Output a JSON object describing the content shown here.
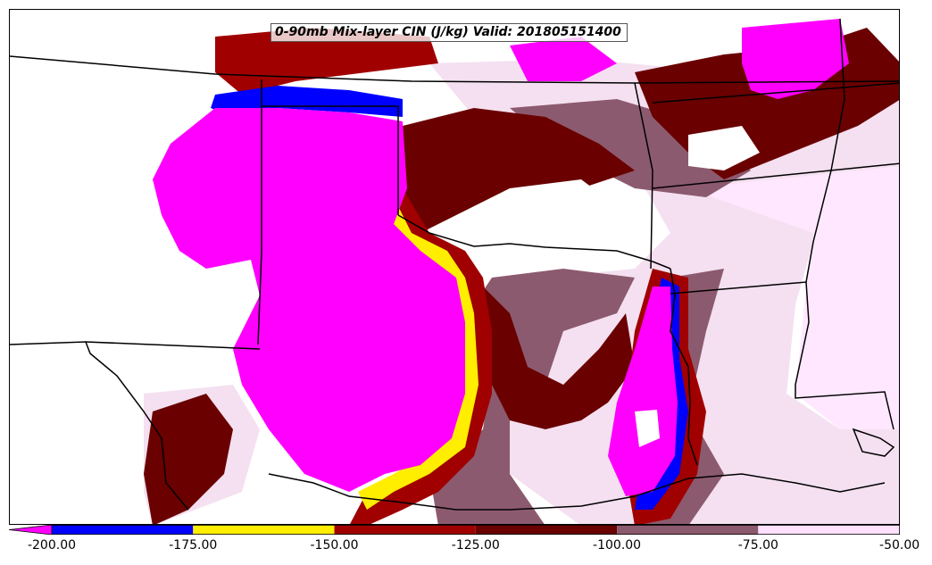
{
  "title": "0-90mb Mix-layer CIN (J/kg) Valid: 201805151400",
  "legend": {
    "labels": [
      "-200.00",
      "-175.00",
      "-150.00",
      "-125.00",
      "-100.00",
      "-75.00",
      "-50.00"
    ],
    "bins": [
      {
        "range": [
          -200,
          -175
        ],
        "color": "#0000ff"
      },
      {
        "range": [
          -175,
          -150
        ],
        "color": "#ffee00"
      },
      {
        "range": [
          -150,
          -125
        ],
        "color": "#a00000"
      },
      {
        "range": [
          -125,
          -100
        ],
        "color": "#6a0000"
      },
      {
        "range": [
          -100,
          -75
        ],
        "color": "#8c5a6e"
      },
      {
        "range": [
          -75,
          -50
        ],
        "color": "#ffe0ff"
      }
    ],
    "below_min_color": "#ff00ff",
    "extend": "min"
  },
  "map_colors": {
    "background": "#ffffff",
    "strong": "#ff00ff",
    "light": "#f4e0f0",
    "lightest": "#ffe8ff",
    "boundaries": "#000000"
  }
}
